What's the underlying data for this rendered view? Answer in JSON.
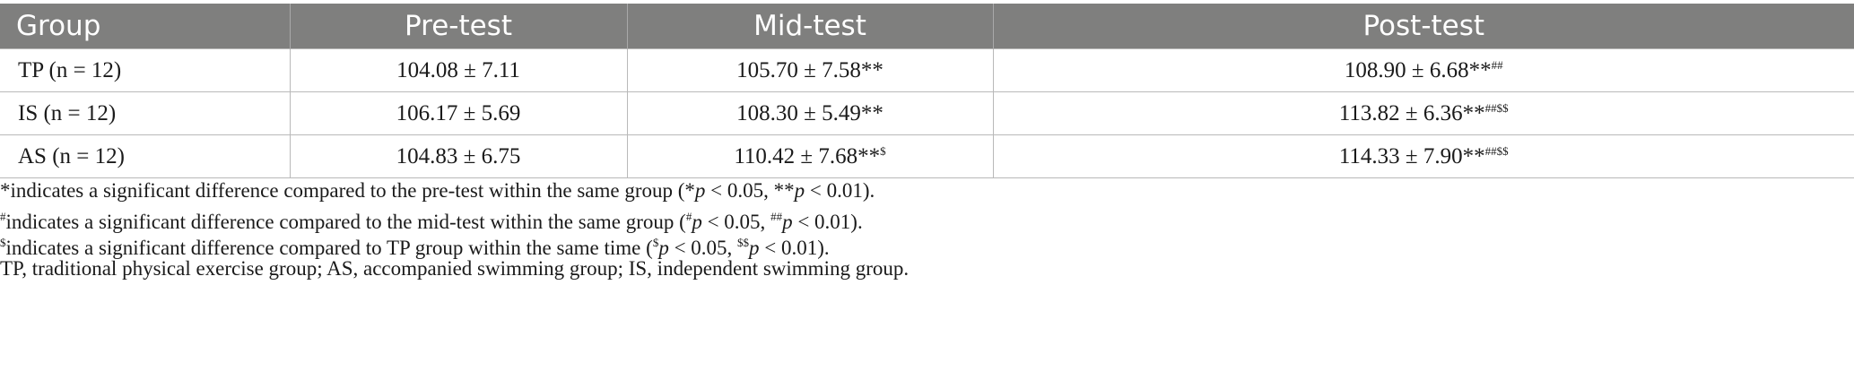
{
  "table": {
    "headers": [
      "Group",
      "Pre-test",
      "Mid-test",
      "Post-test"
    ],
    "rows": [
      {
        "group": "TP (n = 12)",
        "pre": "104.08 ± 7.11",
        "mid": "105.70 ± 7.58",
        "mid_mark": "**",
        "post": "108.90 ± 6.68",
        "post_mark": "**",
        "post_sup": "##"
      },
      {
        "group": "IS (n = 12)",
        "pre": "106.17 ± 5.69",
        "mid": "108.30 ± 5.49",
        "mid_mark": "**",
        "post": "113.82 ± 6.36",
        "post_mark": "**",
        "post_sup": "##$$"
      },
      {
        "group": "AS (n = 12)",
        "pre": "104.83 ± 6.75",
        "mid": "110.42 ± 7.68",
        "mid_mark": "**",
        "mid_sup": "$",
        "post": "114.33 ± 7.90",
        "post_mark": "**",
        "post_sup": "##$$"
      }
    ]
  },
  "notes": {
    "n1": {
      "a": "*indicates a significant difference compared to the pre-test within the same group (*",
      "b": "p",
      "c": " < 0.05, **",
      "d": "p",
      "e": " < 0.01)."
    },
    "n2": {
      "sup1": "#",
      "a": "indicates a significant difference compared to the mid-test within the same group (",
      "sup2": "#",
      "b": "p",
      "c": " < 0.05, ",
      "sup3": "##",
      "d": "p",
      "e": " < 0.01)."
    },
    "n3": {
      "sup1": "$",
      "a": "indicates a significant difference compared to TP group within the same time (",
      "sup2": "$",
      "b": "p",
      "c": " < 0.05, ",
      "sup3": "$$",
      "d": "p",
      "e": " < 0.01)."
    },
    "n4": "TP, traditional physical exercise group; AS, accompanied swimming group; IS, independent swimming group."
  }
}
